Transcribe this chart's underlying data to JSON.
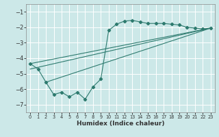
{
  "xlabel": "Humidex (Indice chaleur)",
  "background_color": "#cce8e8",
  "grid_color": "#ffffff",
  "line_color": "#2d7a6e",
  "xlim": [
    -0.5,
    23.5
  ],
  "ylim": [
    -7.5,
    -0.5
  ],
  "yticks": [
    -7,
    -6,
    -5,
    -4,
    -3,
    -2,
    -1
  ],
  "xticks": [
    0,
    1,
    2,
    3,
    4,
    5,
    6,
    7,
    8,
    9,
    10,
    11,
    12,
    13,
    14,
    15,
    16,
    17,
    18,
    19,
    20,
    21,
    22,
    23
  ],
  "series1_x": [
    0,
    1,
    2,
    3,
    4,
    5,
    6,
    7,
    8,
    9,
    10,
    11,
    12,
    13,
    14,
    15,
    16,
    17,
    18,
    19,
    20,
    21,
    22,
    23
  ],
  "series1_y": [
    -4.35,
    -4.7,
    -5.55,
    -6.35,
    -6.2,
    -6.5,
    -6.2,
    -6.65,
    -5.85,
    -5.35,
    -2.2,
    -1.8,
    -1.6,
    -1.55,
    -1.65,
    -1.75,
    -1.75,
    -1.75,
    -1.8,
    -1.85,
    -2.0,
    -2.05,
    -2.1,
    -2.05
  ],
  "trend1_x": [
    0,
    23
  ],
  "trend1_y": [
    -4.35,
    -2.05
  ],
  "trend2_x": [
    0,
    23
  ],
  "trend2_y": [
    -4.7,
    -2.05
  ],
  "trend3_x": [
    2,
    23
  ],
  "trend3_y": [
    -5.55,
    -2.05
  ]
}
